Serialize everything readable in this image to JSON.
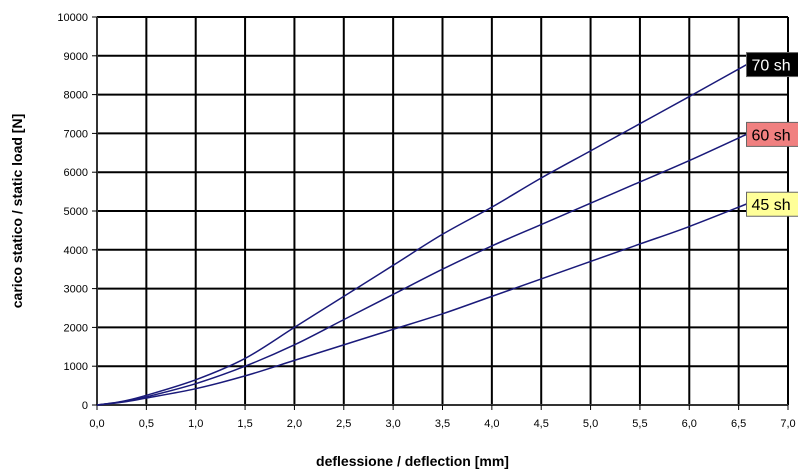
{
  "chart_data": {
    "type": "line",
    "title": "",
    "xlabel": "deflessione / deflection [mm]",
    "ylabel": "carico statico / static load [N]",
    "xlim": [
      0,
      7
    ],
    "ylim": [
      0,
      10000
    ],
    "xticks": [
      0,
      0.5,
      1,
      1.5,
      2,
      2.5,
      3,
      3.5,
      4,
      4.5,
      5,
      5.5,
      6,
      6.5,
      7
    ],
    "xtick_labels": [
      "0,0",
      "0,5",
      "1,0",
      "1,5",
      "2,0",
      "2,5",
      "3,0",
      "3,5",
      "4,0",
      "4,5",
      "5,0",
      "5,5",
      "6,0",
      "6,5",
      "7,0"
    ],
    "yticks": [
      0,
      1000,
      2000,
      3000,
      4000,
      5000,
      6000,
      7000,
      8000,
      9000,
      10000
    ],
    "ytick_labels": [
      "0",
      "1000",
      "2000",
      "3000",
      "4000",
      "5000",
      "6000",
      "7000",
      "8000",
      "9000",
      "10000"
    ],
    "grid": true,
    "line_color": "#1a1a7a",
    "series": [
      {
        "name": "70 sh",
        "label_bg": "#000000",
        "label_fg": "#ffffff",
        "x": [
          0,
          0.25,
          0.5,
          1.0,
          1.5,
          2.0,
          2.5,
          3.0,
          3.5,
          4.0,
          4.5,
          5.0,
          5.5,
          6.0,
          6.6
        ],
        "y": [
          0,
          90,
          250,
          650,
          1200,
          2000,
          2800,
          3600,
          4400,
          5100,
          5850,
          6550,
          7250,
          7950,
          8800
        ]
      },
      {
        "name": "60 sh",
        "label_bg": "#f08080",
        "label_fg": "#000000",
        "x": [
          0,
          0.25,
          0.5,
          1.0,
          1.5,
          2.0,
          2.5,
          3.0,
          3.5,
          4.0,
          4.5,
          5.0,
          5.5,
          6.0,
          6.6
        ],
        "y": [
          0,
          80,
          210,
          550,
          1000,
          1550,
          2200,
          2850,
          3500,
          4100,
          4650,
          5200,
          5750,
          6300,
          7000
        ]
      },
      {
        "name": "45 sh",
        "label_bg": "#ffff99",
        "label_fg": "#000000",
        "x": [
          0,
          0.25,
          0.5,
          1.0,
          1.5,
          2.0,
          2.5,
          3.0,
          3.5,
          4.0,
          4.5,
          5.0,
          5.5,
          6.0,
          6.6
        ],
        "y": [
          0,
          70,
          180,
          420,
          750,
          1150,
          1550,
          1950,
          2350,
          2800,
          3250,
          3700,
          4150,
          4600,
          5200
        ]
      }
    ]
  }
}
